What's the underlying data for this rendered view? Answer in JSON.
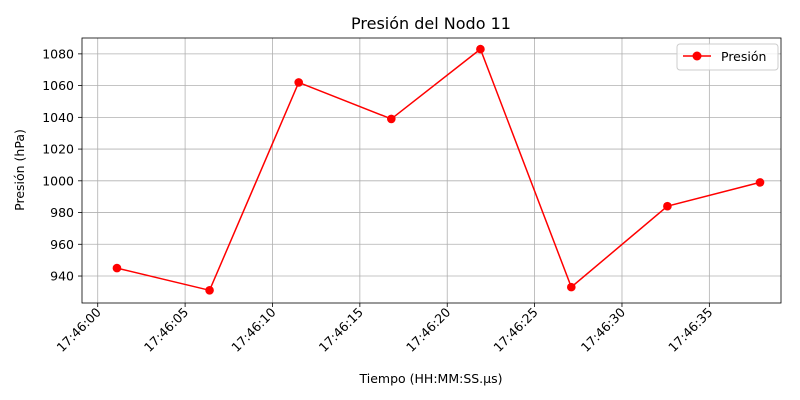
{
  "chart_data": {
    "type": "line",
    "title": "Presión del Nodo 11",
    "xlabel": "Tiempo (HH:MM:SS.µs)",
    "ylabel": "Presión (hPa)",
    "x_ticks": [
      "17:46:00",
      "17:46:05",
      "17:46:10",
      "17:46:15",
      "17:46:20",
      "17:46:25",
      "17:46:30",
      "17:46:35"
    ],
    "x_tick_seconds": [
      0,
      5,
      10,
      15,
      20,
      25,
      30,
      35
    ],
    "xlim_seconds": [
      -0.9,
      39.1
    ],
    "y_ticks": [
      940,
      960,
      980,
      1000,
      1020,
      1040,
      1060,
      1080
    ],
    "ylim": [
      923,
      1090
    ],
    "grid": true,
    "legend_position": "upper-right",
    "series": [
      {
        "name": "Presión",
        "color": "#ff0000",
        "marker": "circle",
        "x_seconds": [
          1.1,
          6.4,
          11.5,
          16.8,
          21.9,
          27.1,
          32.6,
          37.9
        ],
        "x": [
          "17:46:01.1",
          "17:46:06.4",
          "17:46:11.5",
          "17:46:16.8",
          "17:46:21.9",
          "17:46:27.1",
          "17:46:32.6",
          "17:46:37.9"
        ],
        "values": [
          945,
          931,
          1062,
          1039,
          1083,
          933,
          984,
          999
        ]
      }
    ]
  }
}
